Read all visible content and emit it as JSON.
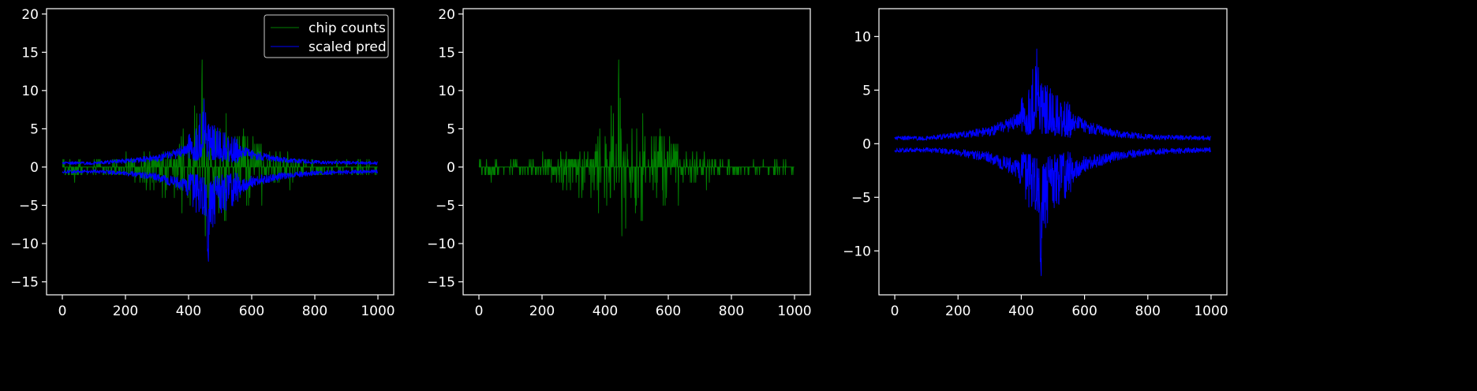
{
  "figure": {
    "background": "#000000",
    "axis_color": "#ffffff"
  },
  "chart_data": [
    {
      "type": "line",
      "title": "",
      "xlabel": "",
      "ylabel": "",
      "xlim": [
        -50,
        1050
      ],
      "ylim": [
        -16.7,
        20.7
      ],
      "xticks": [
        0,
        200,
        400,
        600,
        800,
        1000
      ],
      "xtick_labels": [
        "0",
        "200",
        "400",
        "600",
        "800",
        "1000"
      ],
      "yticks": [
        -15,
        -10,
        -5,
        0,
        5,
        10,
        15,
        20
      ],
      "ytick_labels": [
        "−15",
        "−10",
        "−5",
        "0",
        "5",
        "10",
        "15",
        "20"
      ],
      "grid": false,
      "legend": {
        "placement": "top-right",
        "entries": [
          "chip counts",
          "scaled pred"
        ]
      },
      "series": [
        {
          "name": "chip counts",
          "color": "#008000",
          "x_range": [
            0,
            999
          ],
          "kind": "counts",
          "envelope": {
            "x": [
              0,
              100,
              200,
              300,
              380,
              430,
              445,
              455,
              470,
              500,
              540,
              600,
              700,
              800,
              1000
            ],
            "upper": [
              1,
              1,
              2,
              2,
              5,
              9,
              19,
              19,
              10,
              13,
              9,
              6,
              2,
              1,
              1
            ],
            "lower": [
              -3,
              -2,
              -2,
              -5,
              -6,
              -8,
              -10,
              -12,
              -15,
              -12,
              -10,
              -7,
              -3,
              -2,
              -1
            ]
          }
        },
        {
          "name": "scaled pred",
          "color": "#0000ff",
          "x_range": [
            0,
            999
          ],
          "kind": "bands",
          "envelope": {
            "x": [
              0,
              100,
              200,
              300,
              380,
              430,
              450,
              465,
              480,
              520,
              600,
              700,
              800,
              1000
            ],
            "upper": [
              0.9,
              0.9,
              1.4,
              2,
              3.5,
              6,
              11.5,
              6,
              5.5,
              4.5,
              2.8,
              1.6,
              1.1,
              0.9
            ],
            "lower": [
              -1,
              -1,
              -1.4,
              -2.2,
              -4,
              -6.5,
              -9,
              -13,
              -8,
              -6,
              -3.3,
              -2,
              -1.3,
              -1
            ]
          }
        }
      ]
    },
    {
      "type": "line",
      "title": "",
      "xlabel": "",
      "ylabel": "",
      "xlim": [
        -50,
        1050
      ],
      "ylim": [
        -16.7,
        20.7
      ],
      "xticks": [
        0,
        200,
        400,
        600,
        800,
        1000
      ],
      "xtick_labels": [
        "0",
        "200",
        "400",
        "600",
        "800",
        "1000"
      ],
      "yticks": [
        -15,
        -10,
        -5,
        0,
        5,
        10,
        15,
        20
      ],
      "ytick_labels": [
        "−15",
        "−10",
        "−5",
        "0",
        "5",
        "10",
        "15",
        "20"
      ],
      "grid": false,
      "series": [
        {
          "name": "",
          "color": "#008000",
          "x_range": [
            0,
            999
          ],
          "kind": "counts",
          "envelope": {
            "x": [
              0,
              100,
              200,
              300,
              380,
              430,
              445,
              455,
              470,
              500,
              540,
              600,
              700,
              800,
              1000
            ],
            "upper": [
              1,
              1,
              2,
              2,
              5,
              9,
              19,
              19,
              10,
              13,
              9,
              6,
              2,
              1,
              1
            ],
            "lower": [
              -3,
              -2,
              -2,
              -5,
              -6,
              -8,
              -10,
              -12,
              -15,
              -12,
              -10,
              -7,
              -3,
              -2,
              -1
            ]
          }
        }
      ]
    },
    {
      "type": "line",
      "title": "",
      "xlabel": "",
      "ylabel": "",
      "xlim": [
        -50,
        1050
      ],
      "ylim": [
        -14.1,
        12.6
      ],
      "xticks": [
        0,
        200,
        400,
        600,
        800,
        1000
      ],
      "xtick_labels": [
        "0",
        "200",
        "400",
        "600",
        "800",
        "1000"
      ],
      "yticks": [
        -10,
        -5,
        0,
        5,
        10
      ],
      "ytick_labels": [
        "−10",
        "−5",
        "0",
        "5",
        "10"
      ],
      "grid": false,
      "series": [
        {
          "name": "",
          "color": "#0000ff",
          "x_range": [
            0,
            999
          ],
          "kind": "bands",
          "envelope": {
            "x": [
              0,
              100,
              200,
              300,
              380,
              430,
              450,
              465,
              480,
              520,
              600,
              700,
              800,
              1000
            ],
            "upper": [
              0.9,
              0.9,
              1.4,
              2,
              3.5,
              6,
              11.5,
              6,
              5.5,
              4.5,
              2.8,
              1.6,
              1.1,
              0.9
            ],
            "lower": [
              -1,
              -1,
              -1.4,
              -2.2,
              -4,
              -6.5,
              -9,
              -13,
              -8,
              -6,
              -3.3,
              -2,
              -1.3,
              -1
            ]
          }
        }
      ]
    }
  ]
}
